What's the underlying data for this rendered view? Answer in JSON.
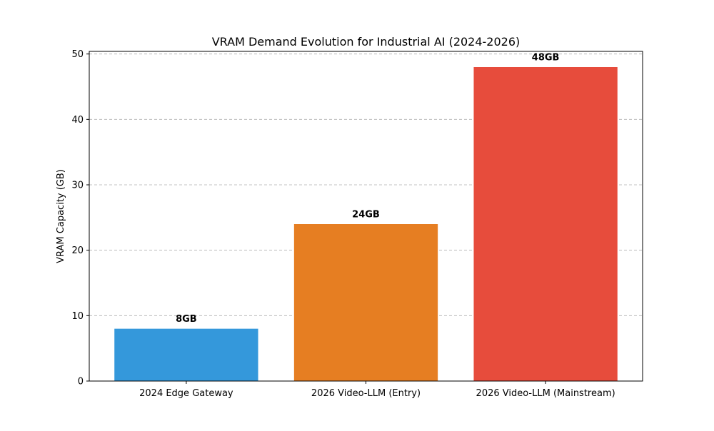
{
  "chart_data": {
    "type": "bar",
    "title": "VRAM Demand Evolution for Industrial AI (2024-2026)",
    "xlabel": "",
    "ylabel": "VRAM Capacity (GB)",
    "categories": [
      "2024 Edge Gateway",
      "2026 Video-LLM (Entry)",
      "2026 Video-LLM (Mainstream)"
    ],
    "values": [
      8,
      24,
      48
    ],
    "data_labels": [
      "8GB",
      "24GB",
      "48GB"
    ],
    "colors": [
      "#3498db",
      "#e67e22",
      "#e74c3c"
    ],
    "ylim": [
      0,
      50.4
    ],
    "yticks": [
      0,
      10,
      20,
      30,
      40,
      50
    ],
    "ytick_labels": [
      "0",
      "10",
      "20",
      "30",
      "40",
      "50"
    ],
    "grid": "y, dashed",
    "legend": "none"
  }
}
